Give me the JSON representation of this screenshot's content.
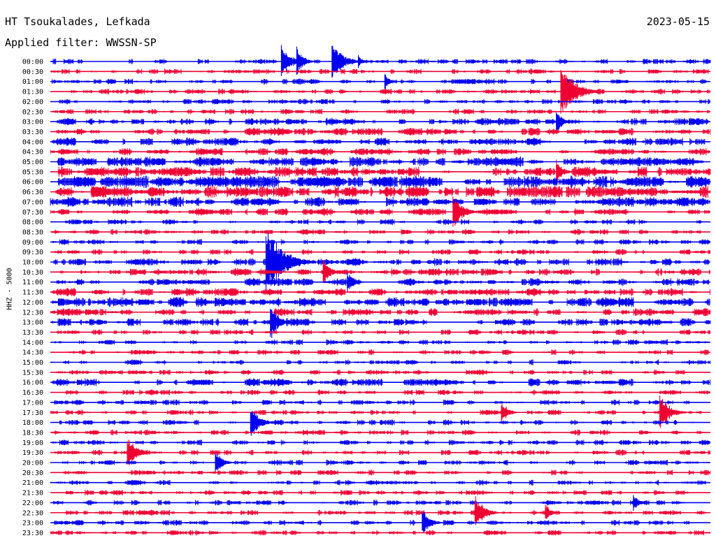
{
  "header": {
    "station": "HT Tsoukalades, Lefkada",
    "date": "2023-05-15",
    "filter": "Applied filter: WWSSN-SP"
  },
  "channel_label": "HHZ - 5000",
  "colors": {
    "blue": "#0000ee",
    "red": "#ee0033"
  },
  "chart_data": {
    "type": "helicorder",
    "title": "HT Tsoukalades, Lefkada",
    "date": "2023-05-15",
    "filter": "WWSSN-SP",
    "ylabel": "HHZ - 5000",
    "minutes_per_line": 30,
    "rows": [
      "00:00",
      "00:30",
      "01:00",
      "01:30",
      "02:00",
      "02:30",
      "03:00",
      "03:30",
      "04:00",
      "04:30",
      "05:00",
      "05:30",
      "06:00",
      "06:30",
      "07:00",
      "07:30",
      "08:00",
      "08:30",
      "09:00",
      "09:30",
      "10:00",
      "10:30",
      "11:00",
      "11:30",
      "12:00",
      "12:30",
      "13:00",
      "13:30",
      "14:00",
      "14:30",
      "15:00",
      "15:30",
      "16:00",
      "16:30",
      "17:00",
      "17:30",
      "18:00",
      "18:30",
      "19:00",
      "19:30",
      "20:00",
      "20:30",
      "21:00",
      "21:30",
      "22:00",
      "22:30",
      "23:00",
      "23:30"
    ],
    "line_colors": [
      "blue",
      "red"
    ],
    "noise_level": [
      2,
      2,
      2,
      2,
      2,
      2,
      3,
      3,
      3,
      3,
      4,
      4,
      5,
      5,
      4,
      3,
      2,
      2,
      2,
      2,
      3,
      3,
      3,
      3,
      4,
      3,
      3,
      2,
      2,
      2,
      2,
      2,
      3,
      2,
      2,
      2,
      2,
      2,
      2,
      2,
      2,
      2,
      2,
      2,
      2,
      2,
      2,
      2
    ],
    "events": [
      {
        "row": "00:00",
        "minute": 10.5,
        "amplitude": 28
      },
      {
        "row": "00:00",
        "minute": 11.2,
        "amplitude": 22
      },
      {
        "row": "00:00",
        "minute": 12.8,
        "amplitude": 34
      },
      {
        "row": "00:00",
        "minute": 14.0,
        "amplitude": 12
      },
      {
        "row": "01:00",
        "minute": 15.2,
        "amplitude": 14
      },
      {
        "row": "01:30",
        "minute": 23.2,
        "amplitude": 45
      },
      {
        "row": "03:00",
        "minute": 23.0,
        "amplitude": 20
      },
      {
        "row": "05:30",
        "minute": 23.0,
        "amplitude": 20
      },
      {
        "row": "07:30",
        "minute": 18.3,
        "amplitude": 30
      },
      {
        "row": "10:00",
        "minute": 9.8,
        "amplitude": 55
      },
      {
        "row": "10:30",
        "minute": 12.4,
        "amplitude": 22
      },
      {
        "row": "11:00",
        "minute": 13.5,
        "amplitude": 20
      },
      {
        "row": "13:00",
        "minute": 10.0,
        "amplitude": 28
      },
      {
        "row": "17:30",
        "minute": 20.5,
        "amplitude": 20
      },
      {
        "row": "17:30",
        "minute": 27.7,
        "amplitude": 30
      },
      {
        "row": "18:00",
        "minute": 9.1,
        "amplitude": 28
      },
      {
        "row": "19:30",
        "minute": 3.5,
        "amplitude": 28
      },
      {
        "row": "20:00",
        "minute": 7.5,
        "amplitude": 22
      },
      {
        "row": "22:00",
        "minute": 26.5,
        "amplitude": 15
      },
      {
        "row": "22:30",
        "minute": 19.3,
        "amplitude": 28
      },
      {
        "row": "22:30",
        "minute": 22.5,
        "amplitude": 16
      },
      {
        "row": "23:00",
        "minute": 16.9,
        "amplitude": 24
      }
    ]
  }
}
